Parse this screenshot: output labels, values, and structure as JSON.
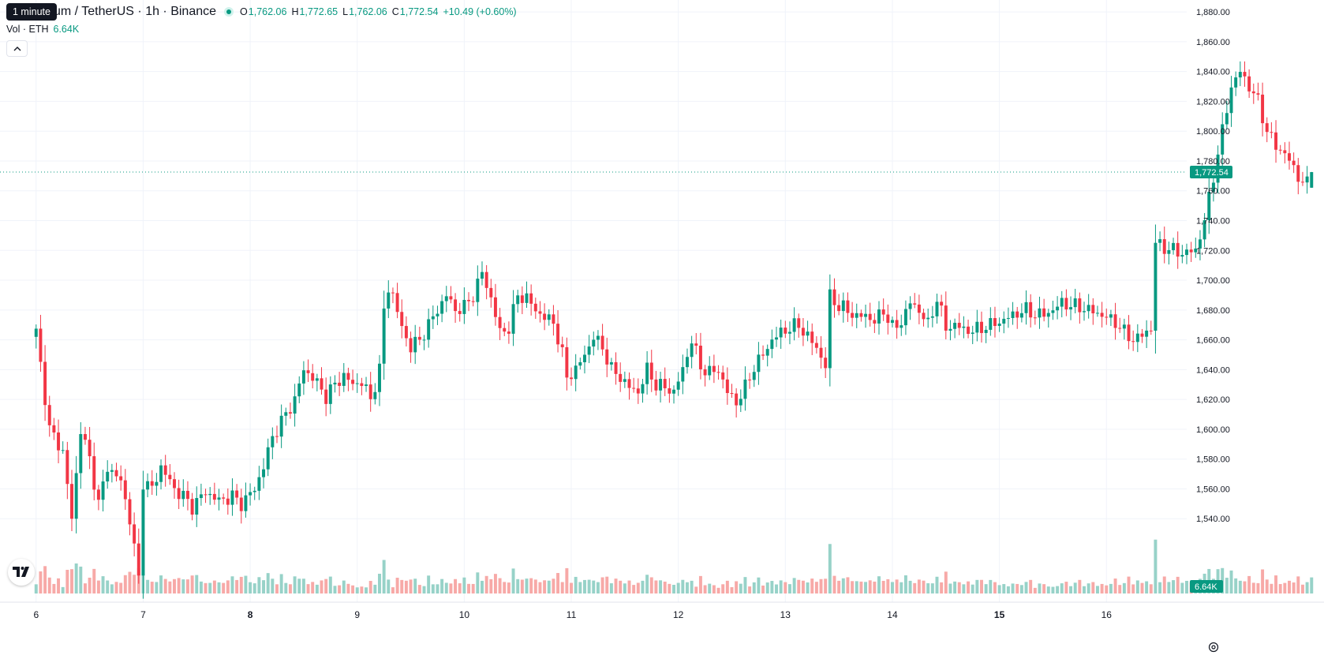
{
  "tooltip": "1 minute",
  "header": {
    "symbol": "um / TetherUS · 1h · Binance",
    "open_label": "O",
    "open": "1,762.06",
    "high_label": "H",
    "high": "1,772.65",
    "low_label": "L",
    "low": "1,762.06",
    "close_label": "C",
    "close": "1,772.54",
    "change": "+10.49 (+0.60%)"
  },
  "volume_legend": {
    "label": "Vol · ETH",
    "value": "6.64K"
  },
  "icons": {
    "collapse": "chevron-up-icon",
    "logo": "tradingview-logo-icon",
    "settings": "settings-icon"
  },
  "colors": {
    "up": "#089981",
    "down": "#f23645",
    "vol_up": "#97d2c8",
    "vol_down": "#f7a9a7"
  },
  "chart_data": {
    "type": "candlestick",
    "y_axis": {
      "ticks": [
        "1,540.00",
        "1,560.00",
        "1,580.00",
        "1,600.00",
        "1,620.00",
        "1,640.00",
        "1,660.00",
        "1,680.00",
        "1,700.00",
        "1,720.00",
        "1,740.00",
        "1,760.00",
        "1,780.00",
        "1,800.00",
        "1,820.00",
        "1,840.00",
        "1,860.00",
        "1,880.00"
      ],
      "range": [
        1484,
        1888
      ]
    },
    "x_axis": {
      "ticks": [
        "6",
        "7",
        "8",
        "9",
        "10",
        "11",
        "12",
        "13",
        "14",
        "15",
        "16"
      ],
      "bold": [
        "8",
        "15"
      ],
      "range_hours": [
        -8.1,
        258
      ]
    },
    "last_price_label": "1,772.54",
    "last_volume_label": "6.64K",
    "close_path": [
      [
        0,
        1665
      ],
      [
        3,
        1600
      ],
      [
        6,
        1585
      ],
      [
        8,
        1540
      ],
      [
        10,
        1600
      ],
      [
        12,
        1580
      ],
      [
        14,
        1550
      ],
      [
        16,
        1575
      ],
      [
        19,
        1565
      ],
      [
        21,
        1540
      ],
      [
        23,
        1500
      ],
      [
        24,
        1565
      ],
      [
        26,
        1560
      ],
      [
        28,
        1575
      ],
      [
        31,
        1560
      ],
      [
        33,
        1555
      ],
      [
        35,
        1548
      ],
      [
        38,
        1558
      ],
      [
        41,
        1552
      ],
      [
        44,
        1555
      ],
      [
        46,
        1550
      ],
      [
        49,
        1560
      ],
      [
        51,
        1575
      ],
      [
        53,
        1595
      ],
      [
        56,
        1610
      ],
      [
        58,
        1620
      ],
      [
        60,
        1640
      ],
      [
        62,
        1635
      ],
      [
        65,
        1622
      ],
      [
        67,
        1630
      ],
      [
        69,
        1636
      ],
      [
        71,
        1630
      ],
      [
        73,
        1632
      ],
      [
        75,
        1620
      ],
      [
        77,
        1640
      ],
      [
        78,
        1680
      ],
      [
        79,
        1695
      ],
      [
        80,
        1690
      ],
      [
        82,
        1668
      ],
      [
        84,
        1655
      ],
      [
        86,
        1660
      ],
      [
        88,
        1670
      ],
      [
        90,
        1680
      ],
      [
        92,
        1690
      ],
      [
        94,
        1680
      ],
      [
        96,
        1682
      ],
      [
        98,
        1690
      ],
      [
        100,
        1705
      ],
      [
        102,
        1688
      ],
      [
        104,
        1665
      ],
      [
        106,
        1668
      ],
      [
        108,
        1690
      ],
      [
        110,
        1688
      ],
      [
        112,
        1680
      ],
      [
        114,
        1675
      ],
      [
        116,
        1672
      ],
      [
        118,
        1650
      ],
      [
        119,
        1635
      ],
      [
        121,
        1640
      ],
      [
        123,
        1650
      ],
      [
        125,
        1662
      ],
      [
        127,
        1655
      ],
      [
        129,
        1640
      ],
      [
        131,
        1635
      ],
      [
        133,
        1628
      ],
      [
        135,
        1625
      ],
      [
        137,
        1640
      ],
      [
        139,
        1630
      ],
      [
        141,
        1628
      ],
      [
        143,
        1625
      ],
      [
        145,
        1640
      ],
      [
        147,
        1660
      ],
      [
        149,
        1642
      ],
      [
        151,
        1638
      ],
      [
        153,
        1640
      ],
      [
        155,
        1625
      ],
      [
        157,
        1618
      ],
      [
        159,
        1628
      ],
      [
        161,
        1642
      ],
      [
        163,
        1650
      ],
      [
        165,
        1660
      ],
      [
        167,
        1665
      ],
      [
        169,
        1668
      ],
      [
        171,
        1670
      ],
      [
        173,
        1662
      ],
      [
        175,
        1655
      ],
      [
        177,
        1642
      ],
      [
        178,
        1690
      ],
      [
        180,
        1682
      ],
      [
        182,
        1680
      ],
      [
        184,
        1675
      ],
      [
        186,
        1677
      ],
      [
        188,
        1672
      ],
      [
        190,
        1680
      ],
      [
        192,
        1668
      ],
      [
        194,
        1672
      ],
      [
        196,
        1685
      ],
      [
        198,
        1680
      ],
      [
        200,
        1670
      ],
      [
        202,
        1688
      ],
      [
        204,
        1668
      ],
      [
        206,
        1670
      ],
      [
        208,
        1667
      ],
      [
        210,
        1666
      ],
      [
        212,
        1668
      ],
      [
        214,
        1670
      ],
      [
        216,
        1672
      ],
      [
        218,
        1675
      ],
      [
        220,
        1678
      ],
      [
        222,
        1680
      ],
      [
        224,
        1677
      ],
      [
        226,
        1677
      ],
      [
        228,
        1680
      ],
      [
        230,
        1685
      ],
      [
        232,
        1683
      ],
      [
        234,
        1682
      ],
      [
        236,
        1680
      ],
      [
        238,
        1678
      ],
      [
        240,
        1675
      ],
      [
        242,
        1672
      ],
      [
        244,
        1665
      ],
      [
        246,
        1660
      ],
      [
        248,
        1663
      ],
      [
        250,
        1668
      ],
      [
        251,
        1725
      ],
      [
        253,
        1722
      ],
      [
        255,
        1720
      ],
      [
        257,
        1718
      ],
      [
        260,
        1720
      ],
      [
        262,
        1740
      ],
      [
        264,
        1770
      ],
      [
        266,
        1800
      ],
      [
        268,
        1830
      ],
      [
        270,
        1840
      ],
      [
        272,
        1830
      ],
      [
        274,
        1820
      ],
      [
        276,
        1800
      ],
      [
        278,
        1790
      ],
      [
        280,
        1785
      ],
      [
        282,
        1775
      ],
      [
        284,
        1765
      ],
      [
        285,
        1765
      ],
      [
        286,
        1772.54
      ]
    ],
    "volume_max": 62.0
  }
}
